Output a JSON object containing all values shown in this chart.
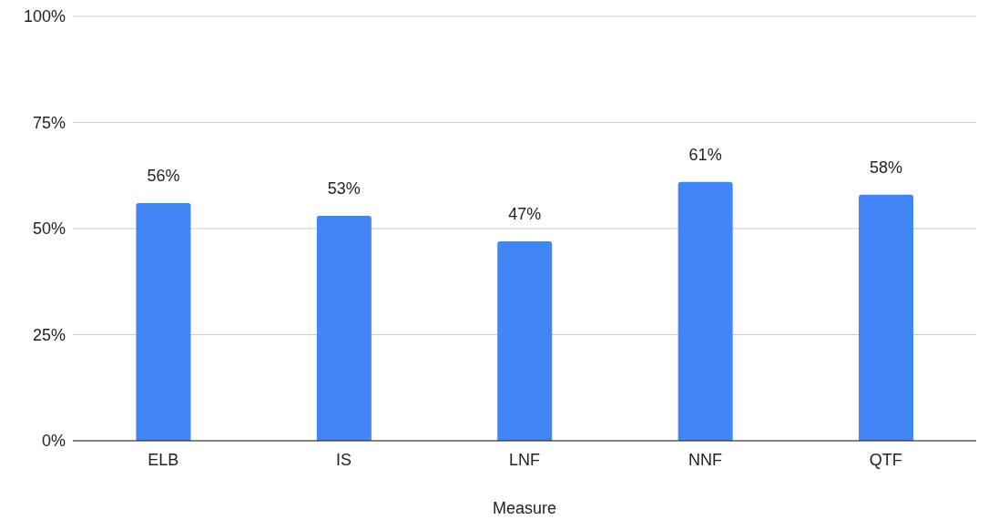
{
  "chart_data": {
    "type": "bar",
    "xlabel": "Measure",
    "categories": [
      "ELB",
      "IS",
      "LNF",
      "NNF",
      "QTF"
    ],
    "values": [
      56,
      53,
      47,
      61,
      58
    ],
    "value_labels": [
      "56%",
      "53%",
      "47%",
      "61%",
      "58%"
    ],
    "color": "#4285f4",
    "ylim": [
      0,
      100
    ],
    "yticks": [
      {
        "value": 0,
        "label": "0%"
      },
      {
        "value": 25,
        "label": "25%"
      },
      {
        "value": 50,
        "label": "50%"
      },
      {
        "value": 75,
        "label": "75%"
      },
      {
        "value": 100,
        "label": "100%"
      }
    ],
    "grid": "y",
    "legend": false
  }
}
